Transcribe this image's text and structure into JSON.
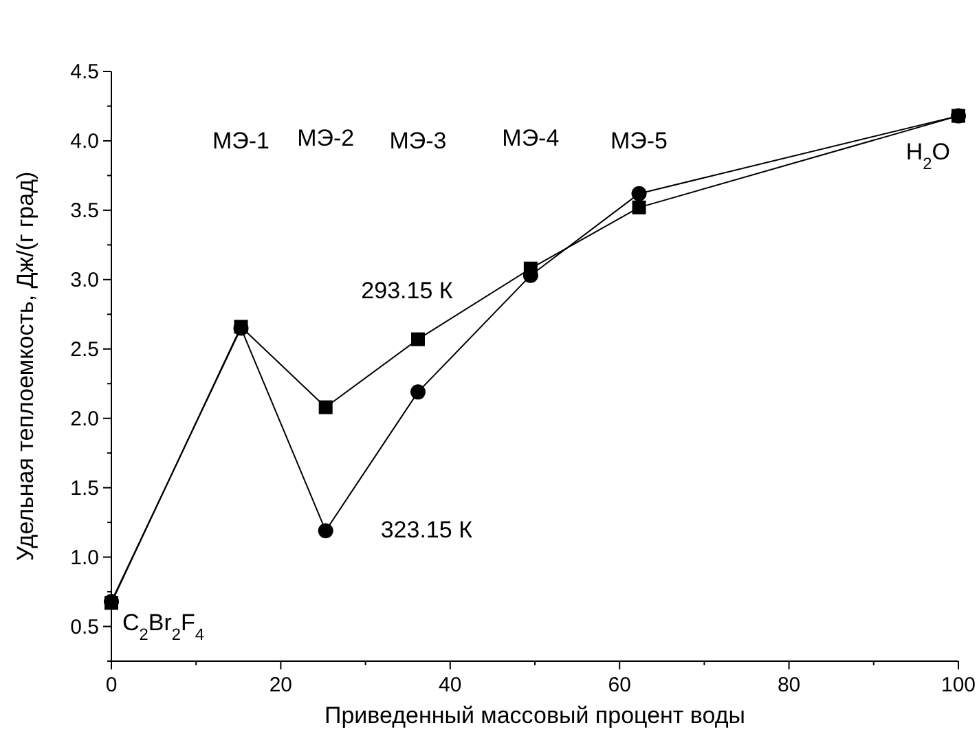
{
  "chart_data": {
    "type": "line",
    "xlabel": "Приведенный массовый процент воды",
    "ylabel": "Удельная теплоемкость, Дж/(г град)",
    "xlim": [
      0,
      100
    ],
    "ylim": [
      0.25,
      4.5
    ],
    "xticks": [
      0,
      {
        "value": 10,
        "label": null
      },
      20,
      {
        "value": 30,
        "label": null
      },
      40,
      {
        "value": 50,
        "label": null
      },
      60,
      {
        "value": 70,
        "label": null
      },
      80,
      {
        "value": 90,
        "label": null
      },
      100
    ],
    "yticks": [
      {
        "value": 0.25,
        "label": null
      },
      {
        "value": 0.5,
        "label": "0.5"
      },
      {
        "value": 0.75,
        "label": null
      },
      {
        "value": 1,
        "label": "1.0"
      },
      {
        "value": 1.25,
        "label": null
      },
      {
        "value": 1.5,
        "label": "1.5"
      },
      {
        "value": 1.75,
        "label": null
      },
      {
        "value": 2,
        "label": "2.0"
      },
      {
        "value": 2.25,
        "label": null
      },
      {
        "value": 2.5,
        "label": "2.5"
      },
      {
        "value": 2.75,
        "label": null
      },
      {
        "value": 3,
        "label": "3.0"
      },
      {
        "value": 3.25,
        "label": null
      },
      {
        "value": 3.5,
        "label": "3.5"
      },
      {
        "value": 3.75,
        "label": null
      },
      {
        "value": 4,
        "label": "4.0"
      },
      {
        "value": 4.25,
        "label": null
      },
      {
        "value": 4.5,
        "label": "4.5"
      }
    ],
    "x": [
      0,
      15.3,
      25.3,
      36.2,
      49.5,
      62.3,
      100
    ],
    "series": [
      {
        "name": "293.15 К",
        "color": "#000000",
        "marker": "square",
        "values": [
          0.67,
          2.66,
          2.08,
          2.57,
          3.08,
          3.52,
          4.18
        ]
      },
      {
        "name": "323.15 К",
        "color": "#000000",
        "marker": "circle",
        "values": [
          0.68,
          2.65,
          1.19,
          2.19,
          3.03,
          3.62,
          4.18
        ]
      }
    ],
    "annotations": [
      "C$_{2}$Br$_{2}$F$_{4}$",
      "МЭ-1",
      "МЭ-2",
      "МЭ-3",
      "МЭ-4",
      "МЭ-5",
      "H$_{2}$O"
    ],
    "line_style": "solid"
  }
}
